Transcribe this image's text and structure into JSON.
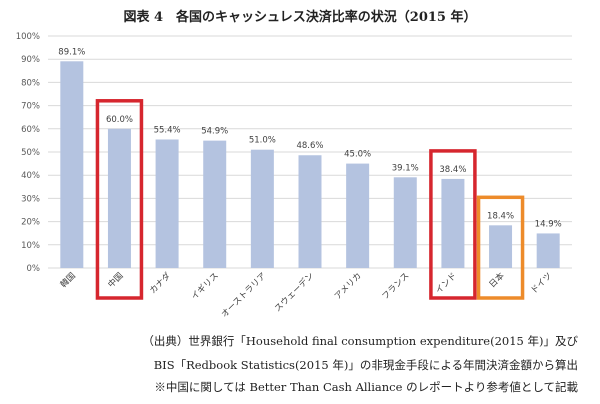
{
  "title": "図表 4　各国のキャッシュレス決済比率の状況（2015 年）",
  "chart_data": {
    "type": "bar",
    "categories": [
      "韓国",
      "中国",
      "カナダ",
      "イギリス",
      "オーストラリア",
      "スウェーデン",
      "アメリカ",
      "フランス",
      "インド",
      "日本",
      "ドイツ"
    ],
    "values": [
      89.1,
      60.0,
      55.4,
      54.9,
      51.0,
      48.6,
      45.0,
      39.1,
      38.4,
      18.4,
      14.9
    ],
    "value_labels": [
      "89.1%",
      "60.0%",
      "55.4%",
      "54.9%",
      "51.0%",
      "48.6%",
      "45.0%",
      "39.1%",
      "38.4%",
      "18.4%",
      "14.9%"
    ],
    "yticks": [
      "0%",
      "10%",
      "20%",
      "30%",
      "40%",
      "50%",
      "60%",
      "70%",
      "80%",
      "90%",
      "100%"
    ],
    "ylim": [
      0,
      100
    ],
    "grid": true,
    "colors": {
      "bar": "#b4c3e0",
      "grid": "#d9d9d9",
      "highlight_red": "#d6262e",
      "highlight_orange": "#ed8b2a"
    },
    "highlights": [
      {
        "category": "中国",
        "color": "#d6262e"
      },
      {
        "category": "インド",
        "color": "#d6262e"
      },
      {
        "category": "日本",
        "color": "#ed8b2a"
      }
    ]
  },
  "source": {
    "line1": "（出典）世界銀行「Household final consumption expenditure(2015 年)」及び",
    "line2": "BIS「Redbook Statistics(2015 年)」の非現金手段による年間決済金額から算出",
    "line3": "※中国に関しては Better Than Cash Alliance のレポートより参考値として記載"
  }
}
